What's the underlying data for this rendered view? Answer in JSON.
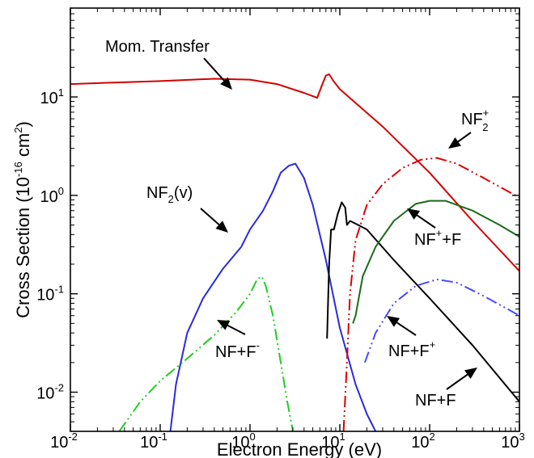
{
  "chart_data": {
    "type": "line",
    "title": "",
    "xlabel": "Electron Energy (eV)",
    "ylabel": "Cross Section (10⁻¹⁶ cm²)",
    "xscale": "log",
    "yscale": "log",
    "xlim": [
      0.01,
      1000
    ],
    "ylim": [
      0.004,
      80
    ],
    "x_ticks": [
      {
        "base": "10",
        "exp": "-2",
        "value": 0.01
      },
      {
        "base": "10",
        "exp": "-1",
        "value": 0.1
      },
      {
        "base": "10",
        "exp": "0",
        "value": 1
      },
      {
        "base": "10",
        "exp": "1",
        "value": 10
      },
      {
        "base": "10",
        "exp": "2",
        "value": 100
      },
      {
        "base": "10",
        "exp": "3",
        "value": 1000
      }
    ],
    "y_ticks": [
      {
        "base": "10",
        "exp": "-2",
        "value": 0.01
      },
      {
        "base": "10",
        "exp": "-1",
        "value": 0.1
      },
      {
        "base": "10",
        "exp": "0",
        "value": 1
      },
      {
        "base": "10",
        "exp": "1",
        "value": 10
      }
    ],
    "grid": false,
    "legend": "none (curves labeled with arrows)",
    "series": [
      {
        "name": "Mom. Transfer",
        "color": "#d40000",
        "dash": "solid",
        "points": [
          [
            0.01,
            13.5
          ],
          [
            0.03,
            14
          ],
          [
            0.1,
            14.5
          ],
          [
            0.4,
            15.3
          ],
          [
            1,
            15
          ],
          [
            2,
            13.5
          ],
          [
            4,
            11
          ],
          [
            5.6,
            9.8
          ],
          [
            6.3,
            13
          ],
          [
            7,
            16.5
          ],
          [
            7.6,
            17
          ],
          [
            8.5,
            14.5
          ],
          [
            10,
            12
          ],
          [
            30,
            5
          ],
          [
            100,
            1.7
          ],
          [
            300,
            0.55
          ],
          [
            1000,
            0.17
          ]
        ]
      },
      {
        "name": "NF₂(v)",
        "color": "#2a2ae0",
        "dash": "solid",
        "points": [
          [
            0.13,
            0.004
          ],
          [
            0.15,
            0.012
          ],
          [
            0.2,
            0.04
          ],
          [
            0.3,
            0.09
          ],
          [
            0.5,
            0.18
          ],
          [
            0.8,
            0.3
          ],
          [
            1,
            0.45
          ],
          [
            1.4,
            0.7
          ],
          [
            1.8,
            1.1
          ],
          [
            2.2,
            1.7
          ],
          [
            2.7,
            2.0
          ],
          [
            3.2,
            2.1
          ],
          [
            4,
            1.5
          ],
          [
            5,
            0.8
          ],
          [
            7,
            0.22
          ],
          [
            10,
            0.045
          ],
          [
            15,
            0.012
          ],
          [
            20,
            0.006
          ],
          [
            25,
            0.004
          ]
        ]
      },
      {
        "name": "NF+F⁻",
        "color": "#22cc22",
        "dash": "dashdotdot",
        "points": [
          [
            0.035,
            0.004
          ],
          [
            0.06,
            0.008
          ],
          [
            0.1,
            0.013
          ],
          [
            0.2,
            0.022
          ],
          [
            0.4,
            0.038
          ],
          [
            0.7,
            0.065
          ],
          [
            1,
            0.1
          ],
          [
            1.2,
            0.14
          ],
          [
            1.35,
            0.15
          ],
          [
            1.5,
            0.12
          ],
          [
            1.8,
            0.06
          ],
          [
            2.2,
            0.02
          ],
          [
            2.6,
            0.008
          ],
          [
            3,
            0.004
          ]
        ]
      },
      {
        "name": "NF+F",
        "color": "#000000",
        "dash": "solid",
        "points": [
          [
            7.2,
            0.035
          ],
          [
            7.6,
            0.2
          ],
          [
            8,
            0.45
          ],
          [
            8.6,
            0.45
          ],
          [
            9.5,
            0.65
          ],
          [
            10.5,
            0.85
          ],
          [
            11.5,
            0.75
          ],
          [
            12,
            0.5
          ],
          [
            13,
            0.55
          ],
          [
            16,
            0.5
          ],
          [
            20,
            0.45
          ],
          [
            40,
            0.22
          ],
          [
            100,
            0.09
          ],
          [
            300,
            0.03
          ],
          [
            1000,
            0.008
          ]
        ]
      },
      {
        "name": "NF₂⁺",
        "color": "#dd0000",
        "dash": "dashdotdot",
        "points": [
          [
            11,
            0.004
          ],
          [
            12,
            0.02
          ],
          [
            13,
            0.1
          ],
          [
            15,
            0.35
          ],
          [
            20,
            0.8
          ],
          [
            30,
            1.3
          ],
          [
            50,
            1.9
          ],
          [
            80,
            2.3
          ],
          [
            120,
            2.4
          ],
          [
            200,
            2.1
          ],
          [
            400,
            1.5
          ],
          [
            1000,
            0.95
          ]
        ]
      },
      {
        "name": "NF⁺+F",
        "color": "#1a6b1a",
        "dash": "solid",
        "points": [
          [
            14,
            0.05
          ],
          [
            15,
            0.06
          ],
          [
            18,
            0.15
          ],
          [
            25,
            0.3
          ],
          [
            40,
            0.55
          ],
          [
            70,
            0.82
          ],
          [
            100,
            0.88
          ],
          [
            150,
            0.88
          ],
          [
            300,
            0.7
          ],
          [
            600,
            0.5
          ],
          [
            1000,
            0.38
          ]
        ]
      },
      {
        "name": "NF+F⁺",
        "color": "#4a4aff",
        "dash": "dashdotdot",
        "points": [
          [
            19,
            0.02
          ],
          [
            25,
            0.04
          ],
          [
            40,
            0.08
          ],
          [
            70,
            0.12
          ],
          [
            120,
            0.14
          ],
          [
            200,
            0.13
          ],
          [
            400,
            0.095
          ],
          [
            1000,
            0.06
          ]
        ]
      }
    ],
    "annotations": [
      {
        "text": "Mom. Transfer"
      },
      {
        "text": "NF",
        "sub": "2",
        "sup": "+"
      },
      {
        "text": "NF",
        "sub": "2",
        "rest": "(v)"
      },
      {
        "text": "NF",
        "sup": "+",
        "rest": "+F"
      },
      {
        "text": "NF+F",
        "sup": "-"
      },
      {
        "text": "NF+F",
        "sup": "+"
      },
      {
        "text": "NF+F"
      }
    ]
  },
  "labels": {
    "ylabel_main": "Cross Section (10",
    "ylabel_exp": "-16",
    "ylabel_mid": " cm",
    "ylabel_exp2": "2",
    "ylabel_end": ")"
  }
}
